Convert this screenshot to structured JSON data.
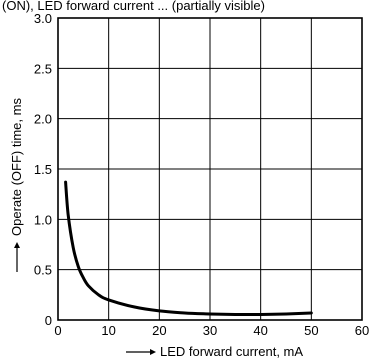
{
  "top_caption": "(ON), LED forward current ... (partially visible)",
  "chart_data": {
    "type": "line",
    "title": "",
    "xlabel": "LED forward current, mA",
    "ylabel": "Operate (OFF) time, ms",
    "xlim": [
      0,
      60
    ],
    "ylim": [
      0,
      3.0
    ],
    "x_ticks": [
      0,
      10,
      20,
      30,
      40,
      50,
      60
    ],
    "y_ticks": [
      0,
      0.5,
      1.0,
      1.5,
      2.0,
      2.5,
      3.0
    ],
    "y_tick_labels": [
      "0",
      "0.5",
      "1.0",
      "1.5",
      "2.0",
      "2.5",
      "3.0"
    ],
    "grid": true,
    "series": [
      {
        "x": [
          1.5,
          2,
          3,
          4,
          5,
          6,
          8,
          10,
          15,
          20,
          25,
          30,
          35,
          40,
          45,
          50
        ],
        "values": [
          1.37,
          1.05,
          0.72,
          0.53,
          0.42,
          0.34,
          0.25,
          0.2,
          0.13,
          0.09,
          0.07,
          0.06,
          0.055,
          0.055,
          0.06,
          0.07
        ]
      }
    ]
  }
}
